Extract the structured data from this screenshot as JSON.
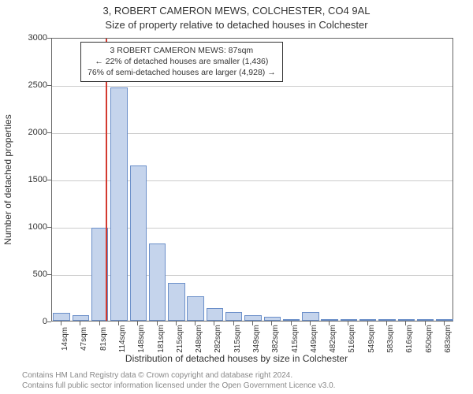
{
  "title_line1": "3, ROBERT CAMERON MEWS, COLCHESTER, CO4 9AL",
  "title_line2": "Size of property relative to detached houses in Colchester",
  "xaxis_title": "Distribution of detached houses by size in Colchester",
  "yaxis_title": "Number of detached properties",
  "chart": {
    "type": "histogram",
    "background_color": "#ffffff",
    "grid_color": "#cccccc",
    "axis_color": "#666666",
    "bar_fill": "#c5d4ec",
    "bar_border": "#6b8fc9",
    "marker_color": "#d33a2f",
    "ylim": [
      0,
      3000
    ],
    "ytick_step": 500,
    "yticks": [
      0,
      500,
      1000,
      1500,
      2000,
      2500,
      3000
    ],
    "xticks": [
      "14sqm",
      "47sqm",
      "81sqm",
      "114sqm",
      "148sqm",
      "181sqm",
      "215sqm",
      "248sqm",
      "282sqm",
      "315sqm",
      "349sqm",
      "382sqm",
      "415sqm",
      "449sqm",
      "482sqm",
      "516sqm",
      "549sqm",
      "583sqm",
      "616sqm",
      "650sqm",
      "683sqm"
    ],
    "bars": [
      {
        "x_index": 0,
        "value": 80
      },
      {
        "x_index": 1,
        "value": 60
      },
      {
        "x_index": 2,
        "value": 980
      },
      {
        "x_index": 3,
        "value": 2470
      },
      {
        "x_index": 4,
        "value": 1640
      },
      {
        "x_index": 5,
        "value": 820
      },
      {
        "x_index": 6,
        "value": 400
      },
      {
        "x_index": 7,
        "value": 260
      },
      {
        "x_index": 8,
        "value": 130
      },
      {
        "x_index": 9,
        "value": 90
      },
      {
        "x_index": 10,
        "value": 60
      },
      {
        "x_index": 11,
        "value": 45
      },
      {
        "x_index": 12,
        "value": 20
      },
      {
        "x_index": 13,
        "value": 90
      },
      {
        "x_index": 14,
        "value": 15
      },
      {
        "x_index": 15,
        "value": 12
      },
      {
        "x_index": 16,
        "value": 10
      },
      {
        "x_index": 17,
        "value": 8
      },
      {
        "x_index": 18,
        "value": 5
      },
      {
        "x_index": 19,
        "value": 5
      },
      {
        "x_index": 20,
        "value": 5
      }
    ],
    "marker_position": 2.8,
    "bar_width_ratio": 0.88,
    "label_fontsize": 11,
    "title_fontsize": 13
  },
  "info_box": {
    "line1": "3 ROBERT CAMERON MEWS: 87sqm",
    "line2": "← 22% of detached houses are smaller (1,436)",
    "line3": "76% of semi-detached houses are larger (4,928) →"
  },
  "footer": {
    "line1": "Contains HM Land Registry data © Crown copyright and database right 2024.",
    "line2": "Contains full public sector information licensed under the Open Government Licence v3.0."
  }
}
